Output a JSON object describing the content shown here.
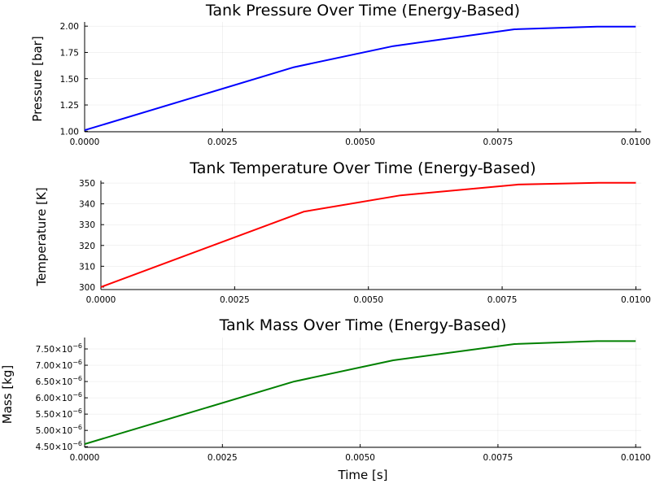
{
  "chart_data": [
    {
      "type": "line",
      "title": "Tank Pressure Over Time (Energy-Based)",
      "xlabel": "",
      "ylabel": "Pressure [bar]",
      "xlim": [
        0,
        0.0101
      ],
      "ylim": [
        0.995,
        2.04
      ],
      "x_ticks": [
        0.0,
        0.0025,
        0.005,
        0.0075,
        0.01
      ],
      "x_tick_labels": [
        "0.0000",
        "0.0025",
        "0.0050",
        "0.0075",
        "0.0100"
      ],
      "y_ticks": [
        1.0,
        1.25,
        1.5,
        1.75,
        2.0
      ],
      "y_tick_labels": [
        "1.00",
        "1.25",
        "1.50",
        "1.75",
        "2.00"
      ],
      "grid": true,
      "legend": "none",
      "series": [
        {
          "color": "#0000ff",
          "x": [
            0.0,
            0.0038,
            0.0056,
            0.0078,
            0.0093,
            0.01
          ],
          "y": [
            1.01,
            1.61,
            1.81,
            1.97,
            1.995,
            1.995
          ]
        }
      ]
    },
    {
      "type": "line",
      "title": "Tank Temperature Over Time (Energy-Based)",
      "xlabel": "",
      "ylabel": "Temperature [K]",
      "xlim": [
        0,
        0.0101
      ],
      "ylim": [
        298.8,
        351.2
      ],
      "x_ticks": [
        0.0,
        0.0025,
        0.005,
        0.0075,
        0.01
      ],
      "x_tick_labels": [
        "0.0000",
        "0.0025",
        "0.0050",
        "0.0075",
        "0.0100"
      ],
      "y_ticks": [
        300,
        310,
        320,
        330,
        340,
        350
      ],
      "y_tick_labels": [
        "300",
        "310",
        "320",
        "330",
        "340",
        "350"
      ],
      "grid": true,
      "legend": "none",
      "series": [
        {
          "color": "#ff0000",
          "x": [
            0.0,
            0.0038,
            0.0056,
            0.0078,
            0.0093,
            0.01
          ],
          "y": [
            300.0,
            336.3,
            344.1,
            349.3,
            350.1,
            350.1
          ]
        }
      ]
    },
    {
      "type": "line",
      "title": "Tank Mass Over Time (Energy-Based)",
      "xlabel": "Time [s]",
      "ylabel": "Mass [kg]",
      "xlim": [
        0,
        0.0101
      ],
      "ylim": [
        4.48e-06,
        7.85e-06
      ],
      "x_ticks": [
        0.0,
        0.0025,
        0.005,
        0.0075,
        0.01
      ],
      "x_tick_labels": [
        "0.0000",
        "0.0025",
        "0.0050",
        "0.0075",
        "0.0100"
      ],
      "y_ticks": [
        4.5e-06,
        5e-06,
        5.5e-06,
        6e-06,
        6.5e-06,
        7e-06,
        7.5e-06
      ],
      "y_tick_mantissas": [
        "4.50",
        "5.00",
        "5.50",
        "6.00",
        "6.50",
        "7.00",
        "7.50"
      ],
      "y_tick_base": "×10",
      "y_tick_exponent": "−6",
      "grid": true,
      "legend": "none",
      "series": [
        {
          "color": "#008000",
          "x": [
            0.0,
            0.0038,
            0.0056,
            0.0078,
            0.0093,
            0.01
          ],
          "y": [
            4.58e-06,
            6.5e-06,
            7.15e-06,
            7.65e-06,
            7.74e-06,
            7.74e-06
          ]
        }
      ]
    }
  ]
}
